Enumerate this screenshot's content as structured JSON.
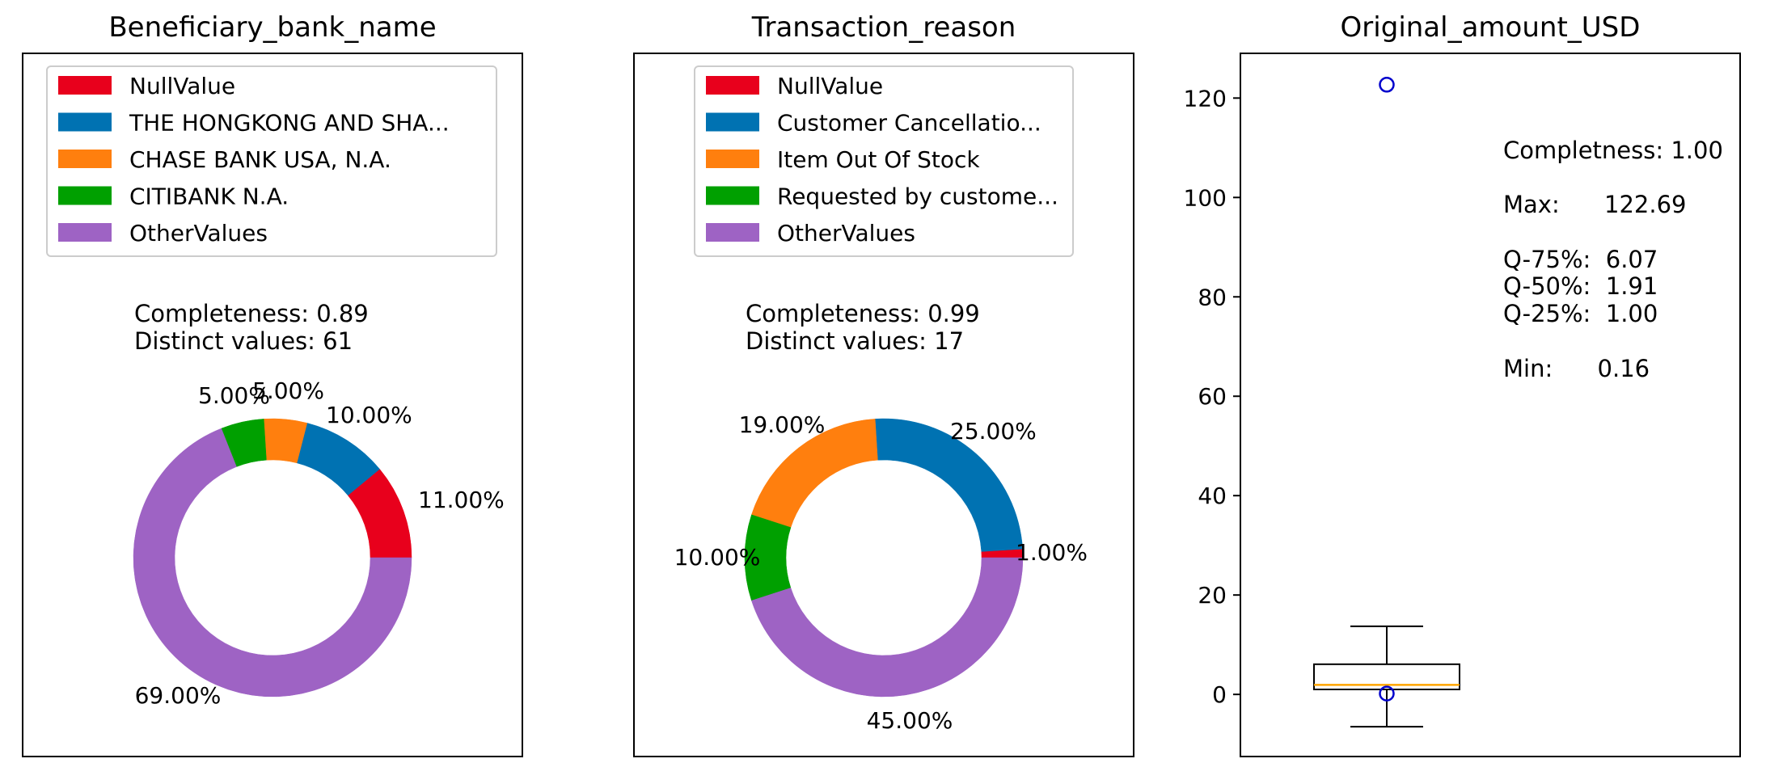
{
  "chart_data": [
    {
      "type": "pie",
      "style": "donut",
      "title": "Beneficiary_bank_name",
      "legend_placement": "upper-center",
      "stats": [
        "Completeness: 0.89",
        "Distinct values: 61"
      ],
      "slices": [
        {
          "label": "NullValue",
          "value": 11,
          "label_text": "11.00%",
          "color": "#e8001c"
        },
        {
          "label": "THE HONGKONG AND SHA...",
          "value": 10,
          "label_text": "10.00%",
          "color": "#0072b2"
        },
        {
          "label": "CHASE BANK USA, N.A.",
          "value": 5,
          "label_text": "5.00%",
          "color": "#ff7f0e"
        },
        {
          "label": "CITIBANK N.A.",
          "value": 5,
          "label_text": "5.00%",
          "color": "#00a000"
        },
        {
          "label": "OtherValues",
          "value": 69,
          "label_text": "69.00%",
          "color": "#9e63c4"
        }
      ]
    },
    {
      "type": "pie",
      "style": "donut",
      "title": "Transaction_reason",
      "legend_placement": "upper-center",
      "stats": [
        "Completeness: 0.99",
        "Distinct values: 17"
      ],
      "slices": [
        {
          "label": "NullValue",
          "value": 1,
          "label_text": "1.00%",
          "color": "#e8001c"
        },
        {
          "label": "Customer Cancellatio...",
          "value": 25,
          "label_text": "25.00%",
          "color": "#0072b2"
        },
        {
          "label": "Item Out Of Stock",
          "value": 19,
          "label_text": "19.00%",
          "color": "#ff7f0e"
        },
        {
          "label": "Requested by custome...",
          "value": 10,
          "label_text": "10.00%",
          "color": "#00a000"
        },
        {
          "label": "OtherValues",
          "value": 45,
          "label_text": "45.00%",
          "color": "#9e63c4"
        }
      ]
    },
    {
      "type": "box",
      "title": "Original_amount_USD",
      "ylim": [
        -12.5,
        129
      ],
      "yticks": [
        0,
        20,
        40,
        60,
        80,
        100,
        120
      ],
      "box": {
        "q1": 1.0,
        "median": 1.91,
        "q3": 6.07,
        "whisker_low": -6.5,
        "whisker_high": 13.7
      },
      "outliers": [
        122.69,
        0.16
      ],
      "median_color": "#ffa500",
      "outlier_color": "#0000cc",
      "stats": [
        "Completness: 1.00",
        "Max:      122.69",
        "Q-75%:  6.07",
        "Q-50%:  1.91",
        "Q-25%:  1.00",
        "Min:      0.16"
      ]
    }
  ]
}
